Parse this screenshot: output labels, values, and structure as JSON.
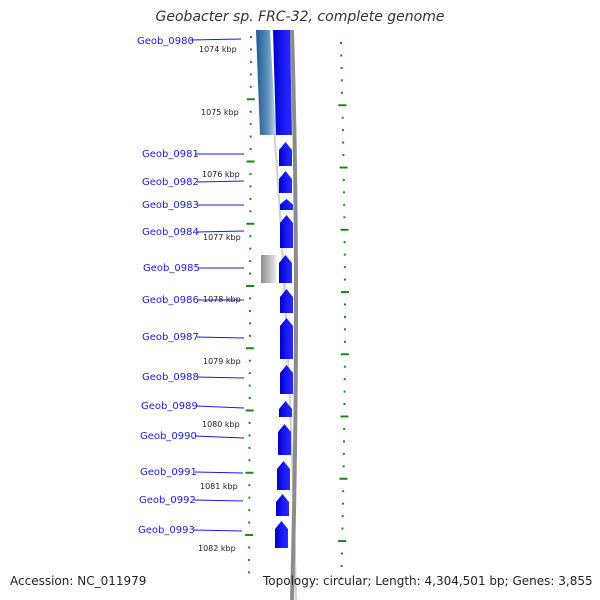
{
  "header": {
    "title": "Geobacter sp. FRC-32, complete genome"
  },
  "footer": {
    "accession": "Accession: NC_011979",
    "summary": "Topology: circular; Length: 4,304,501 bp; Genes: 3,855"
  },
  "colors": {
    "gene": "#1010ee",
    "gene_label": "#1a1ae6",
    "ticks": "#1a8a1a",
    "backbone": "#8c8c8c",
    "pseudo": "#b4b4b4"
  },
  "chart_data": {
    "type": "genome-map",
    "scale_labels": [
      "1074 kbp",
      "1075 kbp",
      "1076 kbp",
      "1077 kbp",
      "1078 kbp",
      "1079 kbp",
      "1080 kbp",
      "1081 kbp",
      "1082 kbp"
    ],
    "scale_kbp": [
      1074,
      1075,
      1076,
      1077,
      1078,
      1079,
      1080,
      1081,
      1082
    ],
    "genes": [
      {
        "name": "Geob_0980"
      },
      {
        "name": "Geob_0981"
      },
      {
        "name": "Geob_0982"
      },
      {
        "name": "Geob_0983"
      },
      {
        "name": "Geob_0984"
      },
      {
        "name": "Geob_0985"
      },
      {
        "name": "Geob_0986"
      },
      {
        "name": "Geob_0987"
      },
      {
        "name": "Geob_0988"
      },
      {
        "name": "Geob_0989"
      },
      {
        "name": "Geob_0990"
      },
      {
        "name": "Geob_0991"
      },
      {
        "name": "Geob_0992"
      },
      {
        "name": "Geob_0993"
      }
    ]
  }
}
